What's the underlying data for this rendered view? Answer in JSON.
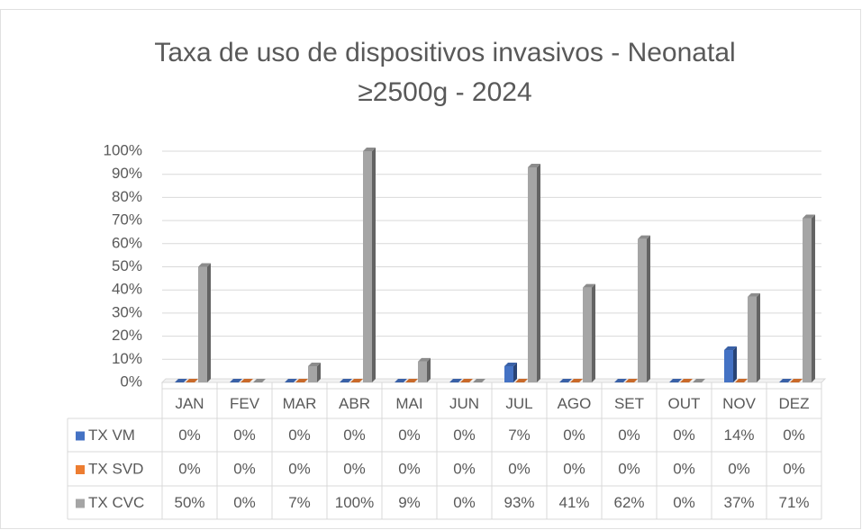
{
  "chart_data": {
    "type": "bar",
    "title": "Taxa de uso de dispositivos invasivos - Neonatal",
    "subtitle": "≥2500g - 2024",
    "categories": [
      "JAN",
      "FEV",
      "MAR",
      "ABR",
      "MAI",
      "JUN",
      "JUL",
      "AGO",
      "SET",
      "OUT",
      "NOV",
      "DEZ"
    ],
    "series": [
      {
        "name": "TX VM",
        "color": "#4472c4",
        "values": [
          0,
          0,
          0,
          0,
          0,
          0,
          7,
          0,
          0,
          0,
          14,
          0
        ],
        "value_labels": [
          "0%",
          "0%",
          "0%",
          "0%",
          "0%",
          "0%",
          "7%",
          "0%",
          "0%",
          "0%",
          "14%",
          "0%"
        ]
      },
      {
        "name": "TX SVD",
        "color": "#ed7d31",
        "values": [
          0,
          0,
          0,
          0,
          0,
          0,
          0,
          0,
          0,
          0,
          0,
          0
        ],
        "value_labels": [
          "0%",
          "0%",
          "0%",
          "0%",
          "0%",
          "0%",
          "0%",
          "0%",
          "0%",
          "0%",
          "0%",
          "0%"
        ]
      },
      {
        "name": "TX CVC",
        "color": "#a5a5a5",
        "values": [
          50,
          0,
          7,
          100,
          9,
          0,
          93,
          41,
          62,
          0,
          37,
          71
        ],
        "value_labels": [
          "50%",
          "0%",
          "7%",
          "100%",
          "9%",
          "0%",
          "93%",
          "41%",
          "62%",
          "0%",
          "37%",
          "71%"
        ]
      }
    ],
    "ylim": [
      0,
      100
    ],
    "yticks": [
      {
        "value": 0,
        "label": "0%"
      },
      {
        "value": 10,
        "label": "10%"
      },
      {
        "value": 20,
        "label": "20%"
      },
      {
        "value": 30,
        "label": "30%"
      },
      {
        "value": 40,
        "label": "40%"
      },
      {
        "value": 50,
        "label": "50%"
      },
      {
        "value": 60,
        "label": "60%"
      },
      {
        "value": 70,
        "label": "70%"
      },
      {
        "value": 80,
        "label": "80%"
      },
      {
        "value": 90,
        "label": "90%"
      },
      {
        "value": 100,
        "label": "100%"
      }
    ],
    "grid": true
  }
}
